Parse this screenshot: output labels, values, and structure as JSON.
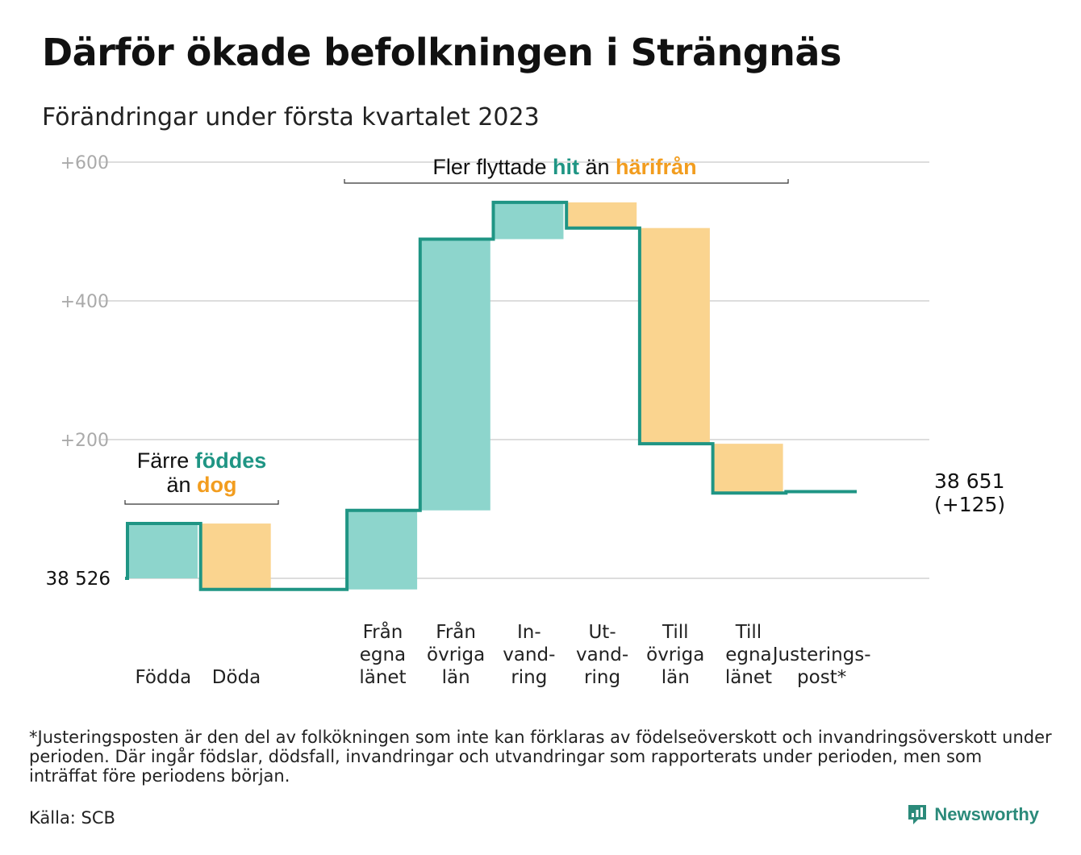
{
  "title": "Därför ökade befolkningen i Strängnäs",
  "subtitle": "Förändringar under första kvartalet 2023",
  "chart_data": {
    "type": "waterfall",
    "start_label": "38 526",
    "end_label_lines": [
      "38 651",
      "(+125)"
    ],
    "ylim": [
      -25,
      610
    ],
    "yticks": [
      {
        "value": 200,
        "label": "+200"
      },
      {
        "value": 400,
        "label": "+400"
      },
      {
        "value": 600,
        "label": "+600"
      }
    ],
    "grid": true,
    "steps": [
      {
        "label_lines": [
          "Födda"
        ],
        "kind": "in",
        "from": 0,
        "to": 79
      },
      {
        "label_lines": [
          "Döda"
        ],
        "kind": "out",
        "from": 79,
        "to": -16
      },
      {
        "label_lines": [
          ""
        ],
        "kind": "none",
        "from": -16,
        "to": -16
      },
      {
        "label_lines": [
          "Från",
          "egna",
          "länet"
        ],
        "kind": "in",
        "from": -16,
        "to": 98
      },
      {
        "label_lines": [
          "Från",
          "övriga",
          "län"
        ],
        "kind": "in",
        "from": 98,
        "to": 489
      },
      {
        "label_lines": [
          "In-",
          "vand-",
          "ring"
        ],
        "kind": "in",
        "from": 489,
        "to": 542
      },
      {
        "label_lines": [
          "Ut-",
          "vand-",
          "ring"
        ],
        "kind": "out",
        "from": 542,
        "to": 505
      },
      {
        "label_lines": [
          "Till",
          "övriga",
          "län"
        ],
        "kind": "out",
        "from": 505,
        "to": 194
      },
      {
        "label_lines": [
          "Till",
          "egna",
          "länet"
        ],
        "kind": "out",
        "from": 194,
        "to": 123
      },
      {
        "label_lines": [
          "Justerings-",
          "post*"
        ],
        "kind": "adjust",
        "from": 123,
        "to": 125
      }
    ],
    "annotations": {
      "births": {
        "parts": [
          {
            "text": "Färre ",
            "style": "plain"
          },
          {
            "text": "föddes",
            "style": "in"
          },
          {
            "text": "än ",
            "style": "plain"
          },
          {
            "text": "dog",
            "style": "out"
          }
        ]
      },
      "moves": {
        "parts": [
          {
            "text": "Fler flyttade ",
            "style": "plain"
          },
          {
            "text": "hit",
            "style": "in"
          },
          {
            "text": " än ",
            "style": "plain"
          },
          {
            "text": "härifrån",
            "style": "out"
          }
        ]
      }
    },
    "colors": {
      "in_fill": "#8dd5cc",
      "out_fill": "#fad48f",
      "line": "#1f9584",
      "in_text": "#1f9584",
      "out_text": "#f29d1f",
      "grid": "#dddddd",
      "tick": "#aaaaaa"
    }
  },
  "footnote": "*Justeringsposten är den del av folkökningen som inte kan förklaras av födelseöverskott och invandringsöverskott under perioden. Där ingår födslar, dödsfall, invandringar och utvandringar som rapporterats under perioden, men som inträffat före periodens början.",
  "source": "Källa: SCB",
  "brand": {
    "name": "Newsworthy",
    "icon": "newsworthy-logo-icon"
  }
}
